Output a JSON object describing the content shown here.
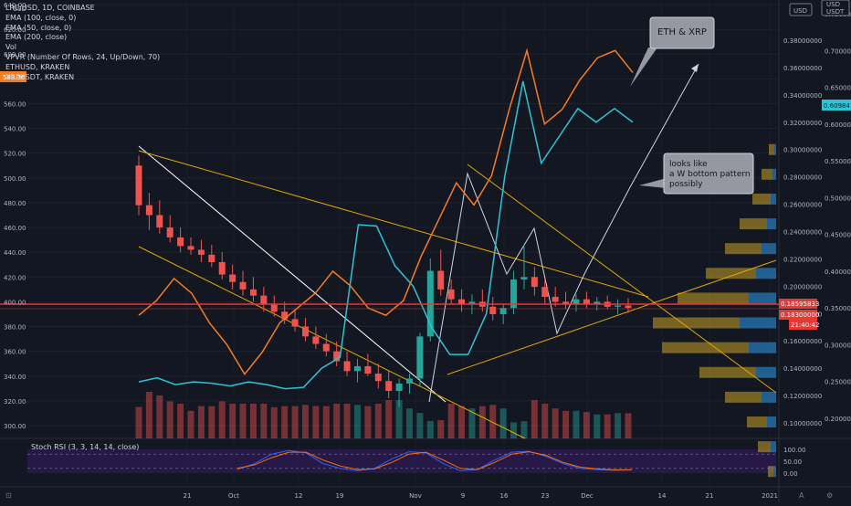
{
  "legend": {
    "title": "LRC/USD, 1D, COINBASE",
    "lines": [
      "EMA (100, close, 0)",
      "EMA (50, close, 0)",
      "EMA (200, close)",
      "Vol",
      "VPVR (Number Of Rows, 24, Up/Down, 70)",
      "ETHUSD, KRAKEN",
      "XRPUSDT, KRAKEN"
    ]
  },
  "rsi_label": "Stoch RSI (3, 3, 14, 14, close)",
  "axes": {
    "left": {
      "title": "USD",
      "ticks": [
        "640.00",
        "620.00",
        "600.00",
        "580.00",
        "560.00",
        "540.00",
        "520.00",
        "500.00",
        "480.00",
        "460.00",
        "440.00",
        "420.00",
        "400.00",
        "380.00",
        "360.00",
        "340.00",
        "320.00",
        "300.00"
      ],
      "badge": "589.36"
    },
    "mid": {
      "ticks": [
        "0.38000000",
        "0.36000000",
        "0.34000000",
        "0.32000000",
        "0.30000000",
        "0.28000000",
        "0.26000000",
        "0.24000000",
        "0.22000000",
        "0.20000000",
        "0.18000000",
        "0.16000000",
        "0.14000000",
        "0.12000000",
        "0.10000000"
      ],
      "badge_red": "0.18595833",
      "badge_red2": "0.18300000",
      "countdown": "21:40:42"
    },
    "right": {
      "title": "USD",
      "title2": "USDT",
      "ticks": [
        "0.75000",
        "0.70000",
        "0.65000",
        "0.60000",
        "0.55000",
        "0.50000",
        "0.45000",
        "0.40000",
        "0.35000",
        "0.30000",
        "0.25000",
        "0.20000"
      ],
      "badge": "0.60984"
    },
    "rsi": {
      "ticks": [
        "100.00",
        "50.00",
        "0.00"
      ]
    },
    "x": {
      "ticks": [
        "21",
        "Oct",
        "12",
        "19",
        "Nov",
        "9",
        "16",
        "23",
        "Dec",
        "14",
        "21",
        "2021"
      ]
    }
  },
  "annotations": {
    "eth_xrp": "ETH & XRP",
    "w_bottom": [
      "looks like",
      "a W bottom pattern",
      "possibly"
    ]
  },
  "colors": {
    "up": "#26a69a",
    "down": "#ef5350",
    "eth": "#f57c1f",
    "xrp": "#2fc3d6",
    "trend": "#e0a800",
    "hline": "#e53935",
    "vp_up": "#2a7fc1",
    "vp_down": "#c9a227"
  },
  "chart_data": {
    "type": "candlestick",
    "title": "LRC/USD, 1D, COINBASE",
    "ylim": [
      290,
      645
    ],
    "ohlc": [
      [
        510,
        518,
        470,
        478
      ],
      [
        478,
        488,
        458,
        470
      ],
      [
        470,
        482,
        455,
        460
      ],
      [
        460,
        470,
        448,
        452
      ],
      [
        452,
        460,
        440,
        445
      ],
      [
        445,
        452,
        438,
        442
      ],
      [
        442,
        450,
        432,
        438
      ],
      [
        438,
        446,
        428,
        432
      ],
      [
        432,
        440,
        418,
        422
      ],
      [
        422,
        430,
        410,
        416
      ],
      [
        416,
        425,
        405,
        410
      ],
      [
        410,
        420,
        400,
        405
      ],
      [
        405,
        412,
        392,
        398
      ],
      [
        398,
        405,
        388,
        392
      ],
      [
        392,
        400,
        382,
        386
      ],
      [
        386,
        394,
        376,
        380
      ],
      [
        380,
        387,
        368,
        372
      ],
      [
        372,
        380,
        362,
        366
      ],
      [
        366,
        374,
        356,
        360
      ],
      [
        360,
        368,
        348,
        352
      ],
      [
        352,
        360,
        340,
        344
      ],
      [
        344,
        354,
        335,
        348
      ],
      [
        348,
        358,
        340,
        342
      ],
      [
        342,
        350,
        330,
        336
      ],
      [
        336,
        345,
        322,
        328
      ],
      [
        328,
        338,
        315,
        334
      ],
      [
        334,
        342,
        326,
        338
      ],
      [
        338,
        375,
        332,
        372
      ],
      [
        372,
        435,
        368,
        425
      ],
      [
        425,
        442,
        405,
        410
      ],
      [
        410,
        418,
        398,
        402
      ],
      [
        402,
        410,
        392,
        398
      ],
      [
        398,
        406,
        390,
        400
      ],
      [
        400,
        410,
        392,
        396
      ],
      [
        396,
        404,
        385,
        390
      ],
      [
        390,
        398,
        382,
        395
      ],
      [
        395,
        425,
        390,
        418
      ],
      [
        418,
        446,
        410,
        420
      ],
      [
        420,
        428,
        405,
        412
      ],
      [
        412,
        418,
        398,
        404
      ],
      [
        404,
        412,
        396,
        400
      ],
      [
        400,
        408,
        394,
        398
      ],
      [
        398,
        406,
        392,
        402
      ],
      [
        402,
        408,
        395,
        398
      ],
      [
        398,
        404,
        393,
        400
      ],
      [
        400,
        405,
        394,
        396
      ],
      [
        396,
        402,
        390,
        397
      ],
      [
        397,
        403,
        391,
        395
      ]
    ],
    "series": [
      {
        "name": "ETHUSD, KRAKEN",
        "axis": "right",
        "values": [
          0.34,
          0.36,
          0.39,
          0.37,
          0.33,
          0.3,
          0.26,
          0.29,
          0.33,
          0.35,
          0.37,
          0.4,
          0.38,
          0.35,
          0.34,
          0.36,
          0.42,
          0.47,
          0.52,
          0.49,
          0.53,
          0.62,
          0.7,
          0.6,
          0.62,
          0.66,
          0.69,
          0.7,
          0.67
        ]
      },
      {
        "name": "XRPUSDT, KRAKEN",
        "axis": "mid",
        "values": [
          0.13,
          0.133,
          0.128,
          0.13,
          0.129,
          0.127,
          0.13,
          0.128,
          0.125,
          0.126,
          0.14,
          0.148,
          0.245,
          0.244,
          0.215,
          0.2,
          0.17,
          0.15,
          0.15,
          0.18,
          0.28,
          0.35,
          0.29,
          0.31,
          0.33,
          0.32,
          0.33,
          0.32
        ]
      }
    ],
    "stoch_rsi": {
      "k": [
        15,
        40,
        80,
        95,
        85,
        40,
        20,
        10,
        20,
        60,
        90,
        85,
        40,
        10,
        15,
        55,
        88,
        92,
        70,
        40,
        20,
        15,
        12,
        14
      ],
      "d": [
        20,
        35,
        65,
        88,
        88,
        55,
        30,
        15,
        18,
        45,
        80,
        88,
        55,
        20,
        15,
        45,
        80,
        90,
        75,
        45,
        25,
        18,
        14,
        14
      ]
    }
  }
}
